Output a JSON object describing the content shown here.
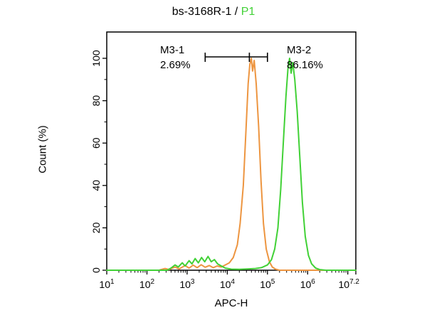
{
  "title": {
    "sample": "bs-3168R-1",
    "separator": " / ",
    "gate": "P1"
  },
  "colors": {
    "background": "#ffffff",
    "axis": "#000000",
    "orange": "#ED9540",
    "green": "#41D136"
  },
  "chart_data": {
    "type": "line",
    "title": "bs-3168R-1 / P1",
    "xlabel": "APC-H",
    "ylabel": "Count (%)",
    "x_scale": "log10",
    "x_range_log": [
      1,
      7.2
    ],
    "ylim": [
      0,
      100
    ],
    "grid": false,
    "legend": "none",
    "x_major_tick_logs": [
      1,
      2,
      3,
      4,
      5,
      6,
      7,
      7.2
    ],
    "x_ticks": [
      {
        "log": 1,
        "base": "10",
        "exp": "1"
      },
      {
        "log": 2,
        "base": "10",
        "exp": "2"
      },
      {
        "log": 3,
        "base": "10",
        "exp": "3"
      },
      {
        "log": 4,
        "base": "10",
        "exp": "4"
      },
      {
        "log": 5,
        "base": "10",
        "exp": "5"
      },
      {
        "log": 6,
        "base": "10",
        "exp": "6"
      },
      {
        "log": 7.2,
        "base": "10",
        "exp": "7.2"
      }
    ],
    "y_ticks": [
      0,
      20,
      40,
      60,
      80,
      100
    ],
    "y_minor_ticks": [
      10,
      30,
      50,
      70,
      90
    ],
    "markers": [
      {
        "label": "M3-1",
        "percent": 2.69,
        "percent_label": "2.69%"
      },
      {
        "label": "M3-2",
        "percent": 86.16,
        "percent_label": "86.16%"
      }
    ],
    "gate_bracket": {
      "y_pct": 100,
      "from_log": 3.45,
      "to_log": 5.0,
      "tick_logs": [
        3.45,
        4.55,
        5.0
      ]
    },
    "series": [
      {
        "name": "bs-3168R-1",
        "color_name": "orange",
        "color": "#ED9540",
        "points_log_pct": [
          [
            1,
            0
          ],
          [
            2.3,
            0
          ],
          [
            2.45,
            0.8
          ],
          [
            2.55,
            0.3
          ],
          [
            2.7,
            1.5
          ],
          [
            2.8,
            0.6
          ],
          [
            2.95,
            2.2
          ],
          [
            3.05,
            1
          ],
          [
            3.15,
            2.4
          ],
          [
            3.25,
            1.2
          ],
          [
            3.35,
            2.6
          ],
          [
            3.45,
            1.4
          ],
          [
            3.55,
            2.2
          ],
          [
            3.65,
            1.2
          ],
          [
            3.75,
            2
          ],
          [
            3.85,
            1.5
          ],
          [
            3.95,
            2.5
          ],
          [
            4.05,
            3.5
          ],
          [
            4.15,
            6
          ],
          [
            4.25,
            12
          ],
          [
            4.32,
            22
          ],
          [
            4.4,
            40
          ],
          [
            4.47,
            68
          ],
          [
            4.52,
            88
          ],
          [
            4.56,
            97
          ],
          [
            4.6,
            100
          ],
          [
            4.63,
            94
          ],
          [
            4.67,
            99
          ],
          [
            4.72,
            88
          ],
          [
            4.78,
            68
          ],
          [
            4.84,
            42
          ],
          [
            4.9,
            22
          ],
          [
            4.97,
            10
          ],
          [
            5.05,
            4
          ],
          [
            5.12,
            1.5
          ],
          [
            5.2,
            0.5
          ],
          [
            5.3,
            0
          ],
          [
            7.2,
            0
          ]
        ]
      },
      {
        "name": "P1",
        "color_name": "green",
        "color": "#41D136",
        "points_log_pct": [
          [
            1,
            0
          ],
          [
            2.5,
            0
          ],
          [
            2.6,
            1
          ],
          [
            2.7,
            2.5
          ],
          [
            2.78,
            1.5
          ],
          [
            2.88,
            3.5
          ],
          [
            2.95,
            2
          ],
          [
            3.05,
            4.5
          ],
          [
            3.12,
            3
          ],
          [
            3.2,
            5.5
          ],
          [
            3.28,
            3.5
          ],
          [
            3.36,
            6
          ],
          [
            3.44,
            4
          ],
          [
            3.52,
            6.5
          ],
          [
            3.6,
            4
          ],
          [
            3.68,
            5
          ],
          [
            3.76,
            3
          ],
          [
            3.85,
            2
          ],
          [
            3.95,
            1
          ],
          [
            4.1,
            0.5
          ],
          [
            4.3,
            0.4
          ],
          [
            4.5,
            0.6
          ],
          [
            4.7,
            0.8
          ],
          [
            4.85,
            1.2
          ],
          [
            5,
            2.5
          ],
          [
            5.1,
            5
          ],
          [
            5.18,
            10
          ],
          [
            5.26,
            20
          ],
          [
            5.33,
            38
          ],
          [
            5.4,
            62
          ],
          [
            5.46,
            82
          ],
          [
            5.51,
            95
          ],
          [
            5.55,
            100
          ],
          [
            5.59,
            93
          ],
          [
            5.63,
            98
          ],
          [
            5.68,
            90
          ],
          [
            5.74,
            75
          ],
          [
            5.8,
            55
          ],
          [
            5.87,
            32
          ],
          [
            5.94,
            16
          ],
          [
            6.02,
            7
          ],
          [
            6.1,
            3
          ],
          [
            6.2,
            1
          ],
          [
            6.3,
            0.3
          ],
          [
            6.45,
            0
          ],
          [
            7.2,
            0
          ]
        ]
      }
    ]
  }
}
